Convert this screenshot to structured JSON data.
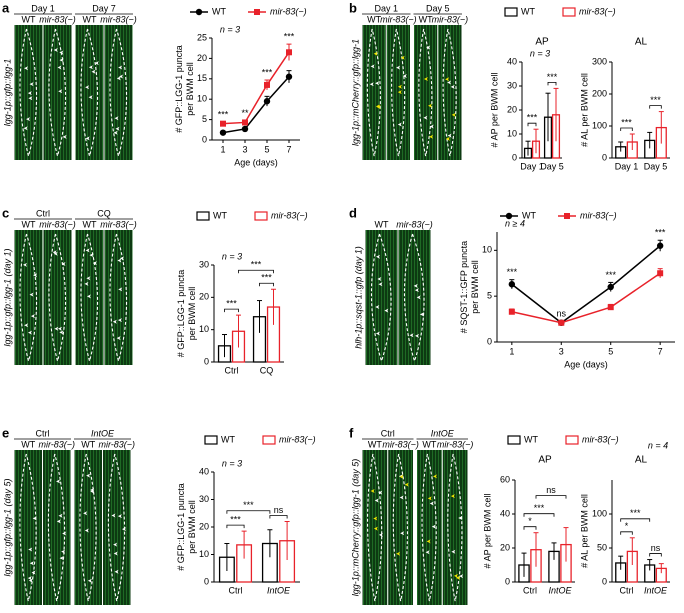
{
  "panels": [
    {
      "letter": "a",
      "conditions": [
        "Day 1",
        "Day 7"
      ],
      "genotypes": [
        "WT",
        "mir-83(−)"
      ],
      "reporter": "lgg-1p::gfp::lgg-1"
    },
    {
      "letter": "b",
      "conditions": [
        "Day 1",
        "Day 5"
      ],
      "genotypes": [
        "WT",
        "mir-83(−)"
      ],
      "reporter": "lgg-1p::mCherry::gfp::lgg-1"
    },
    {
      "letter": "c",
      "conditions": [
        "Ctrl",
        "CQ"
      ],
      "genotypes": [
        "WT",
        "mir-83(−)"
      ],
      "reporter": "lgg-1p::gfp::lgg-1 (day 1)"
    },
    {
      "letter": "d",
      "conditions": [],
      "genotypes": [
        "WT",
        "mir-83(−)"
      ],
      "reporter": "hlh-1p::sqst-1::gfp (day 1)"
    },
    {
      "letter": "e",
      "conditions": [
        "Ctrl",
        "IntOE"
      ],
      "genotypes": [
        "WT",
        "mir-83(−)"
      ],
      "reporter": "lgg-1p::gfp::lgg-1 (day 5)"
    },
    {
      "letter": "f",
      "conditions": [
        "Ctrl",
        "IntOE"
      ],
      "genotypes": [
        "WT",
        "mir-83(−)"
      ],
      "reporter": "lgg-1p::mCherry::gfp::lgg-1 (day 5)"
    }
  ],
  "chart_data": [
    {
      "type": "line",
      "n": "n = 3",
      "legend": true,
      "xlabel": "Age (days)",
      "ylabel": [
        "# GFP::LGG-1 puncta",
        "per BWM cell"
      ],
      "x": [
        1,
        3,
        5,
        7
      ],
      "xlim": [
        0,
        8
      ],
      "xticks": [
        1,
        3,
        5,
        7
      ],
      "ylim": [
        0,
        25
      ],
      "yticks": [
        0,
        5,
        10,
        15,
        20,
        25
      ],
      "series": [
        {
          "name": "WT",
          "color": "#000000",
          "values": [
            1.8,
            2.7,
            9.5,
            15.5
          ],
          "errors": [
            0.3,
            0.4,
            1.2,
            1.5
          ]
        },
        {
          "name": "mir-83(−)",
          "color": "#e8222a",
          "values": [
            4.0,
            4.3,
            13.5,
            21.5
          ],
          "errors": [
            0.4,
            0.5,
            1.2,
            2.0
          ]
        }
      ],
      "annotations": [
        "***",
        "**",
        "***",
        "***"
      ]
    },
    {
      "type": "bar",
      "title": "AP",
      "n": "n = 3",
      "legend": true,
      "ylabel": [
        "# AP per BWM cell"
      ],
      "categories": [
        "Day 1",
        "Day 5"
      ],
      "ylim": [
        0,
        40
      ],
      "yticks": [
        0,
        10,
        20,
        30,
        40
      ],
      "series": [
        {
          "name": "WT",
          "color": "#000000",
          "values": [
            4,
            17
          ],
          "errors": [
            3,
            10
          ]
        },
        {
          "name": "mir-83(−)",
          "color": "#e8222a",
          "values": [
            7,
            18
          ],
          "errors": [
            5,
            11
          ]
        }
      ],
      "annotations": [
        "***",
        "***"
      ]
    },
    {
      "type": "bar",
      "title": "AL",
      "legend": false,
      "ylabel": [
        "# AL per BWM cell"
      ],
      "categories": [
        "Day 1",
        "Day 5"
      ],
      "ylim": [
        0,
        300
      ],
      "yticks": [
        0,
        100,
        200,
        300
      ],
      "series": [
        {
          "name": "WT",
          "color": "#000000",
          "values": [
            35,
            55
          ],
          "errors": [
            15,
            25
          ]
        },
        {
          "name": "mir-83(−)",
          "color": "#e8222a",
          "values": [
            50,
            95
          ],
          "errors": [
            25,
            50
          ]
        }
      ],
      "annotations": [
        "***",
        "***"
      ]
    },
    {
      "type": "bar",
      "n": "n = 3",
      "legend": true,
      "ylabel": [
        "# GFP::LGG-1 puncta",
        "per BWM cell"
      ],
      "categories": [
        "Ctrl",
        "CQ"
      ],
      "ylim": [
        0,
        30
      ],
      "yticks": [
        0,
        10,
        20,
        30
      ],
      "series": [
        {
          "name": "WT",
          "color": "#000000",
          "values": [
            5,
            14
          ],
          "errors": [
            3.5,
            5
          ]
        },
        {
          "name": "mir-83(−)",
          "color": "#e8222a",
          "values": [
            9.5,
            17
          ],
          "errors": [
            5,
            5.5
          ]
        }
      ],
      "annotations": [
        "***",
        "***",
        "***"
      ]
    },
    {
      "type": "line",
      "n": "n ≥ 4",
      "legend": true,
      "xlabel": "Age (days)",
      "ylabel": [
        "# SQST-1::GFP puncta",
        "per BWM cell"
      ],
      "x": [
        1,
        3,
        5,
        7
      ],
      "xlim": [
        0.4,
        7.6
      ],
      "xticks": [
        1,
        3,
        5,
        7
      ],
      "ylim": [
        0,
        12
      ],
      "yticks": [
        0,
        5,
        10
      ],
      "series": [
        {
          "name": "WT",
          "color": "#000000",
          "values": [
            6.3,
            2.1,
            6.0,
            10.5
          ],
          "errors": [
            0.5,
            0.2,
            0.5,
            0.6
          ]
        },
        {
          "name": "mir-83(−)",
          "color": "#e8222a",
          "values": [
            3.3,
            2.1,
            3.8,
            7.5
          ],
          "errors": [
            0.3,
            0.2,
            0.3,
            0.5
          ]
        }
      ],
      "annotations": [
        "***",
        "ns",
        "***",
        "***"
      ]
    },
    {
      "type": "bar",
      "n": "n = 3",
      "legend": true,
      "ylabel": [
        "# GFP::LGG-1 puncta",
        "per BWM cell"
      ],
      "categories": [
        "Ctrl",
        "IntOE"
      ],
      "ylim": [
        0,
        40
      ],
      "yticks": [
        0,
        10,
        20,
        30,
        40
      ],
      "series": [
        {
          "name": "WT",
          "color": "#000000",
          "values": [
            9,
            14
          ],
          "errors": [
            5,
            5
          ]
        },
        {
          "name": "mir-83(−)",
          "color": "#e8222a",
          "values": [
            13.5,
            15
          ],
          "errors": [
            5,
            7
          ]
        }
      ],
      "annotations": [
        "***",
        "***",
        "ns"
      ]
    },
    {
      "type": "bar",
      "title": "AP",
      "legend": true,
      "ylabel": [
        "# AP per BWM cell"
      ],
      "categories": [
        "Ctrl",
        "IntOE"
      ],
      "ylim": [
        0,
        60
      ],
      "yticks": [
        0,
        20,
        40,
        60
      ],
      "series": [
        {
          "name": "WT",
          "color": "#000000",
          "values": [
            10,
            18
          ],
          "errors": [
            7,
            5
          ]
        },
        {
          "name": "mir-83(−)",
          "color": "#e8222a",
          "values": [
            19,
            22
          ],
          "errors": [
            10,
            10
          ]
        }
      ],
      "annotations": [
        "*",
        "***",
        "ns"
      ]
    },
    {
      "type": "bar",
      "title": "AL",
      "n": "n = 4",
      "legend": false,
      "ylabel": [
        "# AL per BWM cell"
      ],
      "categories": [
        "Ctrl",
        "IntOE"
      ],
      "ylim": [
        0,
        150
      ],
      "yticks": [
        0,
        50,
        100
      ],
      "series": [
        {
          "name": "WT",
          "color": "#000000",
          "values": [
            28,
            25
          ],
          "errors": [
            10,
            8
          ]
        },
        {
          "name": "mir-83(−)",
          "color": "#e8222a",
          "values": [
            45,
            20
          ],
          "errors": [
            20,
            7
          ]
        }
      ],
      "annotations": [
        "*",
        "***",
        "ns"
      ]
    }
  ]
}
